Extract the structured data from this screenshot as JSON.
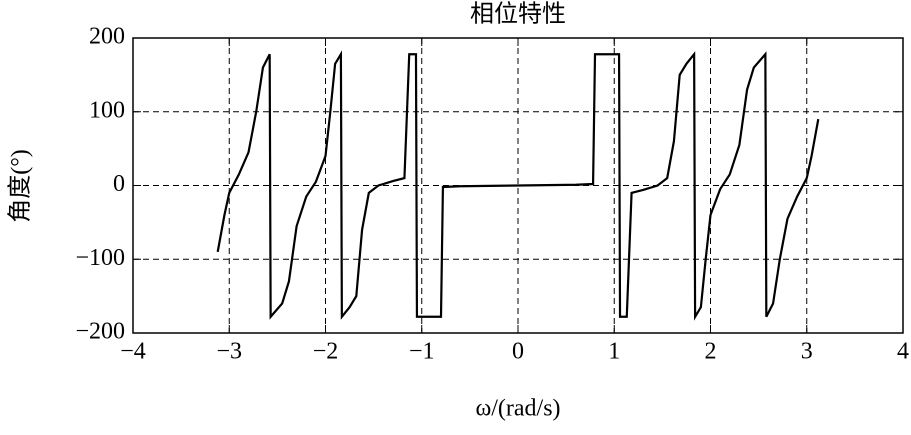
{
  "chart_data": {
    "type": "line",
    "title": "相位特性",
    "x_label": "ω/(rad/s)",
    "y_label": "角度(°)",
    "xlim": [
      -4,
      4
    ],
    "ylim": [
      -200,
      200
    ],
    "xticks": [
      {
        "value": -4,
        "label": "−4"
      },
      {
        "value": -3,
        "label": "−3"
      },
      {
        "value": -2,
        "label": "−2"
      },
      {
        "value": -1,
        "label": "−1"
      },
      0,
      1,
      2,
      3,
      4
    ],
    "yticks": [
      {
        "value": -200,
        "label": "−200"
      },
      {
        "value": -100,
        "label": "−100"
      },
      0,
      100,
      200
    ],
    "grid": true,
    "x": [
      -3.12,
      -3.05,
      -3.0,
      -2.9,
      -2.8,
      -2.72,
      -2.65,
      -2.58,
      -2.57,
      -2.45,
      -2.38,
      -2.3,
      -2.2,
      -2.1,
      -2.0,
      -1.95,
      -1.9,
      -1.84,
      -1.83,
      -1.75,
      -1.68,
      -1.62,
      -1.55,
      -1.45,
      -1.3,
      -1.18,
      -1.13,
      -1.06,
      -1.05,
      -0.8,
      -0.78,
      -0.6,
      -0.3,
      0,
      0.3,
      0.6,
      0.78,
      0.8,
      1.05,
      1.06,
      1.13,
      1.18,
      1.3,
      1.45,
      1.55,
      1.62,
      1.68,
      1.75,
      1.83,
      1.84,
      1.9,
      1.95,
      2.0,
      2.1,
      2.2,
      2.3,
      2.38,
      2.45,
      2.57,
      2.58,
      2.65,
      2.72,
      2.8,
      2.9,
      3.0,
      3.05,
      3.12
    ],
    "series": [
      {
        "name": "phase",
        "color": "#000000",
        "values": [
          -90,
          -40,
          -10,
          15,
          45,
          100,
          160,
          178,
          -178,
          -160,
          -130,
          -55,
          -15,
          5,
          40,
          100,
          165,
          178,
          -178,
          -165,
          -150,
          -60,
          -10,
          0,
          6,
          10,
          178,
          178,
          -178,
          -178,
          -2,
          -1,
          -0.5,
          0,
          0.5,
          1,
          2,
          178,
          178,
          -178,
          -178,
          -10,
          -6,
          0,
          10,
          60,
          150,
          165,
          178,
          -178,
          -165,
          -100,
          -40,
          -5,
          15,
          55,
          130,
          160,
          178,
          -178,
          -160,
          -100,
          -45,
          -15,
          10,
          40,
          90
        ]
      }
    ]
  }
}
